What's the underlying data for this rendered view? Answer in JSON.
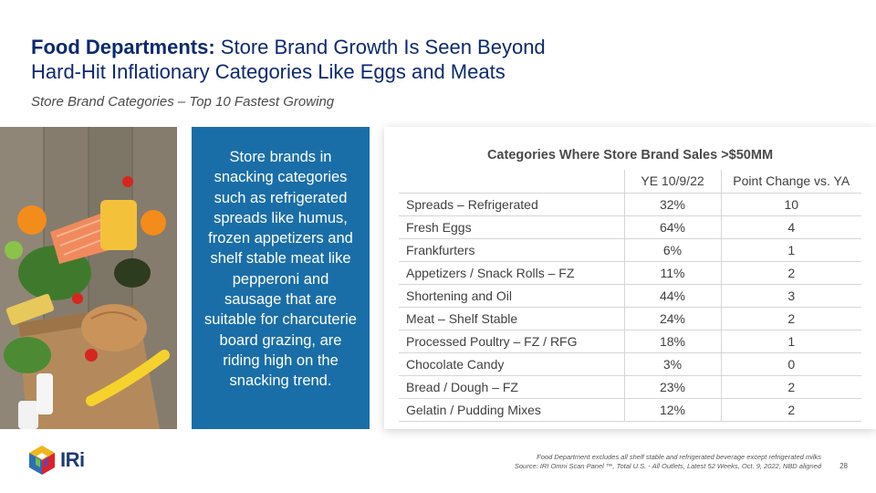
{
  "header": {
    "title_bold": "Food Departments:",
    "title_rest_line1": " Store Brand Growth Is Seen Beyond",
    "title_line2": "Hard-Hit Inflationary Categories Like Eggs and Meats",
    "subtitle": "Store Brand Categories – Top 10 Fastest Growing"
  },
  "callout": {
    "text": "Store brands in snacking categories such as refrigerated spreads like humus, frozen appetizers and shelf stable meat like pepperoni and sausage that are suitable for charcuterie board grazing, are riding high on the snacking trend."
  },
  "table": {
    "title": "Categories Where Store Brand Sales >$50MM",
    "headers": [
      "",
      "YE 10/9/22",
      "Point Change vs. YA"
    ],
    "rows": [
      {
        "category": "Spreads – Refrigerated",
        "ye": "32%",
        "change": "10"
      },
      {
        "category": "Fresh Eggs",
        "ye": "64%",
        "change": "4"
      },
      {
        "category": "Frankfurters",
        "ye": "6%",
        "change": "1"
      },
      {
        "category": "Appetizers / Snack Rolls – FZ",
        "ye": "11%",
        "change": "2"
      },
      {
        "category": "Shortening and Oil",
        "ye": "44%",
        "change": "3"
      },
      {
        "category": "Meat – Shelf Stable",
        "ye": "24%",
        "change": "2"
      },
      {
        "category": "Processed Poultry – FZ / RFG",
        "ye": "18%",
        "change": "1"
      },
      {
        "category": "Chocolate Candy",
        "ye": "3%",
        "change": "0"
      },
      {
        "category": "Bread / Dough – FZ",
        "ye": "23%",
        "change": "2"
      },
      {
        "category": "Gelatin / Pudding Mixes",
        "ye": "12%",
        "change": "2"
      }
    ]
  },
  "footer": {
    "logo_text": "IRi",
    "note_line1": "Food Department excludes all shelf stable and refrigerated beverage except refrigerated milks",
    "note_line2": "Source: IRI  Omni Scan Panel ™, Total U.S. - All Outlets, Latest 52 Weeks, Oct. 9, 2022, NBD aligned",
    "page_number": "28"
  },
  "colors": {
    "title_blue": "#0b2a6e",
    "callout_blue": "#1a6ea8"
  }
}
